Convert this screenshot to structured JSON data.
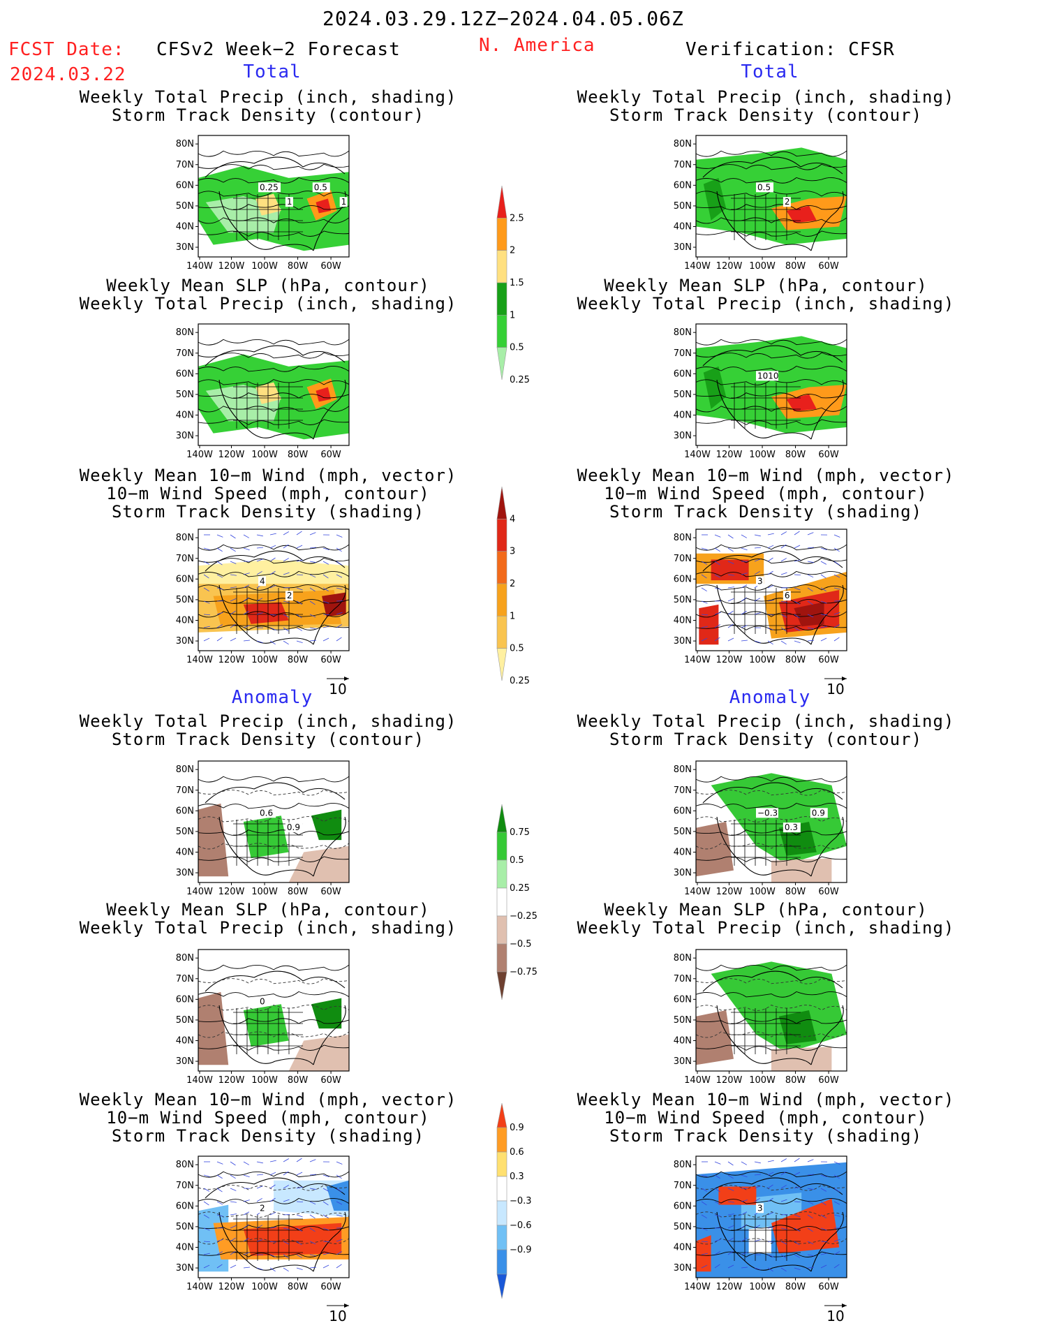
{
  "header": {
    "period": "2024.03.29.12Z−2024.04.05.06Z",
    "fcst_label": "FCST Date:",
    "fcst_date": "2024.03.22",
    "model": "CFSv2 Week−2 Forecast",
    "region": "N. America",
    "verification": "Verification: CFSR"
  },
  "sections": {
    "total": "Total",
    "anomaly": "Anomaly"
  },
  "titles": {
    "precip_track": [
      "Weekly Total Precip (inch, shading)",
      "Storm Track Density (contour)"
    ],
    "slp_precip": [
      "Weekly Mean SLP (hPa, contour)",
      "Weekly Total Precip (inch, shading)"
    ],
    "wind_track": [
      "Weekly Mean 10−m Wind (mph, vector)",
      "10−m Wind Speed (mph, contour)",
      "Storm Track Density (shading)"
    ]
  },
  "axes": {
    "lat_labels": [
      "80N",
      "70N",
      "60N",
      "50N",
      "40N",
      "30N"
    ],
    "lon_labels": [
      "140W",
      "120W",
      "100W",
      "80W",
      "60W"
    ]
  },
  "vector_ref": "10",
  "colorbars": [
    {
      "id": "precip-total",
      "labels": [
        "2.5",
        "2",
        "1.5",
        "1",
        "0.5",
        "0.25"
      ],
      "colors": [
        "#e8201c",
        "#ff9a1a",
        "#ffe080",
        "#18a018",
        "#36d036",
        "#a8eea8"
      ]
    },
    {
      "id": "density-total",
      "labels": [
        "4",
        "3",
        "2",
        "1",
        "0.5",
        "0.25"
      ],
      "colors": [
        "#a0140e",
        "#e02818",
        "#f26a1a",
        "#f7a21c",
        "#f9c450",
        "#fff0a0"
      ]
    },
    {
      "id": "precip-anom",
      "labels": [
        "0.75",
        "0.5",
        "0.25",
        "−0.25",
        "−0.5",
        "−0.75"
      ],
      "colors": [
        "#108c10",
        "#36c936",
        "#a8eea8",
        "#ffffff",
        "#e0c0b0",
        "#b08070",
        "#6e4030"
      ]
    },
    {
      "id": "density-anom",
      "labels": [
        "0.9",
        "0.6",
        "0.3",
        "−0.3",
        "−0.6",
        "−0.9"
      ],
      "colors": [
        "#f23f18",
        "#ff9c24",
        "#ffe070",
        "#ffffff",
        "#c8e8ff",
        "#70c0f5",
        "#3a90e8",
        "#1a58d8"
      ]
    }
  ],
  "panel_labels": {
    "fc_precip_track": [
      "0.25",
      "1",
      "0.5",
      "1"
    ],
    "ob_precip_track": [
      "0.5",
      "2"
    ],
    "ob_slp_precip": [
      "1010"
    ],
    "fc_wind_track": [
      "4",
      "2"
    ],
    "ob_wind_track": [
      "3",
      "6"
    ],
    "fc_anom_precip_track": [
      "0.6",
      "0.9"
    ],
    "ob_anom_precip_track": [
      "−0.3",
      "0.3",
      "0.9"
    ],
    "fc_anom_slp_precip": [
      "0"
    ],
    "fc_anom_wind_track": [
      "2"
    ],
    "ob_anom_wind_track": [
      "3"
    ]
  }
}
